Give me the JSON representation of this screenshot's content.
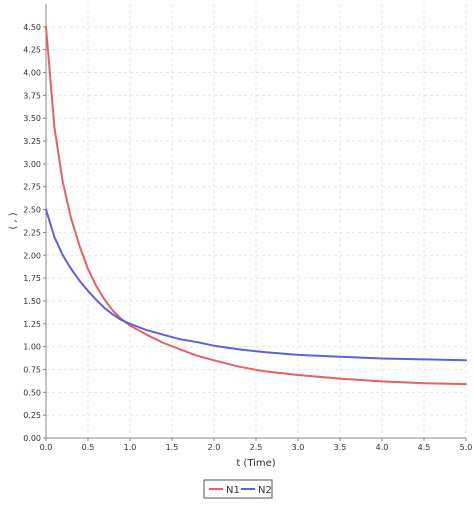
{
  "chart_data": {
    "type": "line",
    "title": "",
    "xlabel": "t (Time)",
    "ylabel": "( , )",
    "xlim": [
      0,
      5
    ],
    "ylim": [
      0,
      4.75
    ],
    "x_ticks": [
      0,
      0.5,
      1,
      1.5,
      2,
      2.5,
      3,
      3.5,
      4,
      4.5,
      5
    ],
    "x_tick_labels": [
      "0.0",
      "0.5",
      "1.0",
      "1.5",
      "2.0",
      "2.5",
      "3.0",
      "3.5",
      "4.0",
      "4.5",
      "5.0"
    ],
    "y_ticks": [
      0,
      0.25,
      0.5,
      0.75,
      1,
      1.25,
      1.5,
      1.75,
      2,
      2.25,
      2.5,
      2.75,
      3,
      3.25,
      3.5,
      3.75,
      4,
      4.25,
      4.5
    ],
    "y_tick_labels": [
      "0.00",
      "0.25",
      "0.50",
      "0.75",
      "1.00",
      "1.25",
      "1.50",
      "1.75",
      "2.00",
      "2.25",
      "2.50",
      "2.75",
      "3.00",
      "3.25",
      "3.50",
      "3.75",
      "4.00",
      "4.25",
      "4.50"
    ],
    "grid": true,
    "legend_position": "bottom-center",
    "x": [
      0,
      0.1,
      0.2,
      0.3,
      0.4,
      0.5,
      0.6,
      0.7,
      0.8,
      0.9,
      1.0,
      1.2,
      1.4,
      1.6,
      1.8,
      2.0,
      2.3,
      2.6,
      3.0,
      3.5,
      4.0,
      4.5,
      5.0
    ],
    "series": [
      {
        "name": "N1",
        "color": "#e86060",
        "values": [
          4.5,
          3.4,
          2.8,
          2.4,
          2.1,
          1.85,
          1.66,
          1.51,
          1.39,
          1.3,
          1.23,
          1.13,
          1.04,
          0.97,
          0.9,
          0.85,
          0.78,
          0.73,
          0.69,
          0.65,
          0.62,
          0.6,
          0.59
        ]
      },
      {
        "name": "N2",
        "color": "#6060e0",
        "values": [
          2.5,
          2.2,
          2.0,
          1.85,
          1.72,
          1.61,
          1.51,
          1.42,
          1.35,
          1.29,
          1.25,
          1.18,
          1.13,
          1.08,
          1.05,
          1.01,
          0.97,
          0.94,
          0.91,
          0.89,
          0.87,
          0.86,
          0.85
        ]
      }
    ]
  }
}
